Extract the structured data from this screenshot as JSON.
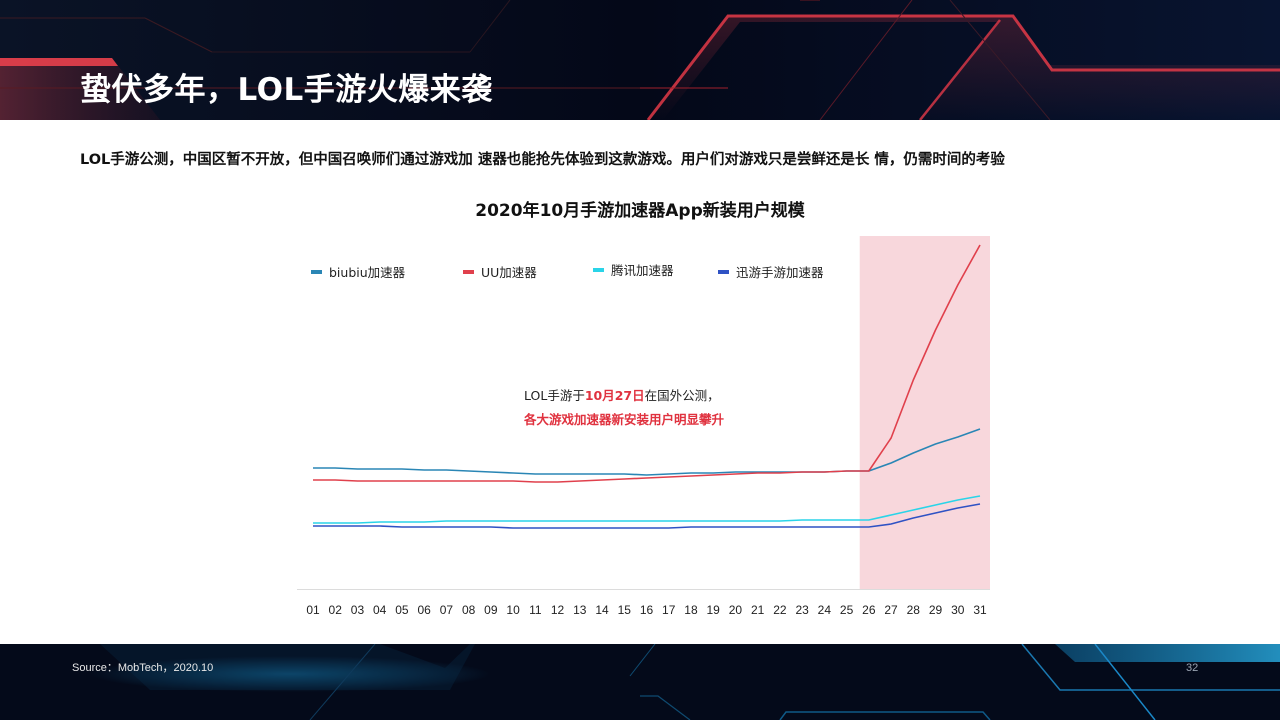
{
  "header": {
    "title": "蛰伏多年，LOL手游火爆来袭"
  },
  "subtitle": "LOL手游公测，中国区暂不开放，但中国召唤师们通过游戏加 速器也能抢先体验到这款游戏。用户们对游戏只是尝鲜还是长 情，仍需时间的考验",
  "annotation": {
    "line1_prefix": "LOL手游于",
    "line1_highlight": "10月27日",
    "line1_suffix": "在国外公测，",
    "line2": "各大游戏加速器新安装用户明显攀升"
  },
  "footer": {
    "source": "Source：MobTech，2020.10",
    "page_number": "32"
  },
  "colors": {
    "biubiu": "#2a86b5",
    "uu": "#e0404c",
    "tencent": "#2ad4e8",
    "xunyou": "#2f52c4",
    "highlight": "#f8d7dc",
    "accent_red": "#e0323f"
  },
  "chart_data": {
    "type": "line",
    "title": "2020年10月手游加速器App新装用户规模",
    "xlabel": "",
    "ylabel": "",
    "y_axis_shown": false,
    "y_units": "relative (no y-axis scale shown; values = pixel height above baseline)",
    "grid": false,
    "legend_position": "top",
    "categories": [
      "01",
      "02",
      "03",
      "04",
      "05",
      "06",
      "07",
      "08",
      "09",
      "10",
      "11",
      "12",
      "13",
      "14",
      "15",
      "16",
      "17",
      "18",
      "19",
      "20",
      "21",
      "22",
      "23",
      "24",
      "25",
      "26",
      "27",
      "28",
      "29",
      "30",
      "31"
    ],
    "highlight_range": [
      "26",
      "31"
    ],
    "series": [
      {
        "name": "biubiu加速器",
        "color": "#2a86b5",
        "values": [
          121,
          121,
          120,
          120,
          120,
          119,
          119,
          118,
          117,
          116,
          115,
          115,
          115,
          115,
          115,
          114,
          115,
          116,
          116,
          117,
          117,
          117,
          117,
          117,
          118,
          118,
          126,
          136,
          145,
          152,
          160
        ]
      },
      {
        "name": "UU加速器",
        "color": "#e0404c",
        "values": [
          109,
          109,
          108,
          108,
          108,
          108,
          108,
          108,
          108,
          108,
          107,
          107,
          108,
          109,
          110,
          111,
          112,
          113,
          114,
          115,
          116,
          116,
          117,
          117,
          118,
          118,
          151,
          209,
          259,
          304,
          344
        ]
      },
      {
        "name": "腾讯加速器",
        "color": "#2ad4e8",
        "values": [
          66,
          66,
          66,
          67,
          67,
          67,
          68,
          68,
          68,
          68,
          68,
          68,
          68,
          68,
          68,
          68,
          68,
          68,
          68,
          68,
          68,
          68,
          69,
          69,
          69,
          69,
          74,
          79,
          84,
          89,
          93
        ]
      },
      {
        "name": "迅游手游加速器",
        "color": "#2f52c4",
        "values": [
          63,
          63,
          63,
          63,
          62,
          62,
          62,
          62,
          62,
          61,
          61,
          61,
          61,
          61,
          61,
          61,
          61,
          62,
          62,
          62,
          62,
          62,
          62,
          62,
          62,
          62,
          65,
          71,
          76,
          81,
          85
        ]
      }
    ]
  }
}
